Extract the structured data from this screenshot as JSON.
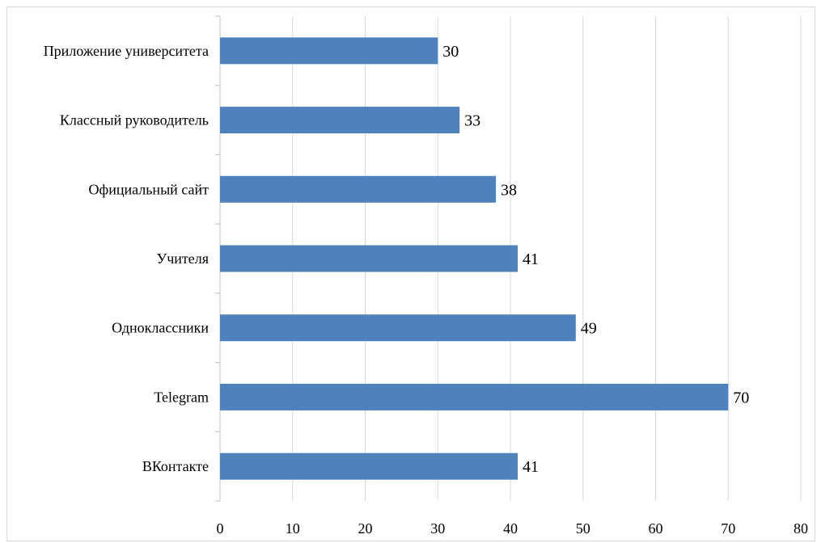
{
  "chart_data": {
    "type": "bar",
    "orientation": "horizontal",
    "categories": [
      "Приложение университета",
      "Классный руководитель",
      "Официальный сайт",
      "Учителя",
      "Одноклассники",
      "Telegram",
      "ВКонтакте"
    ],
    "values": [
      30,
      33,
      38,
      41,
      49,
      70,
      41
    ],
    "data_labels": [
      "30",
      "33",
      "38",
      "41",
      "49",
      "70",
      "41"
    ],
    "xlim": [
      0,
      80
    ],
    "x_ticks": [
      0,
      10,
      20,
      30,
      40,
      50,
      60,
      70,
      80
    ],
    "x_tick_labels": [
      "0",
      "10",
      "20",
      "30",
      "40",
      "50",
      "60",
      "70",
      "80"
    ],
    "title": "",
    "xlabel": "",
    "ylabel": "",
    "grid": "vertical",
    "legend": "none",
    "bar_color": "#4f81bd",
    "grid_color": "#d9d9d9",
    "axis_color": "#bfbfbf"
  }
}
